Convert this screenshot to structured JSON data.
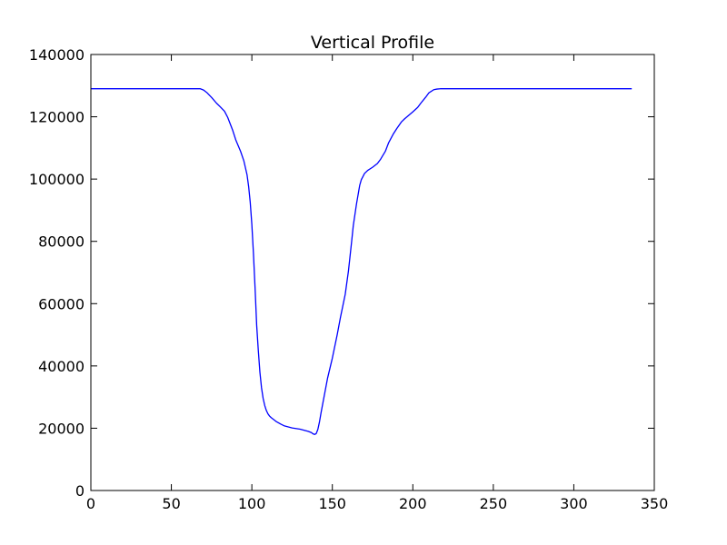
{
  "chart_data": {
    "type": "line",
    "title": "Vertical Profile",
    "xlabel": "",
    "ylabel": "",
    "xlim": [
      0,
      350
    ],
    "ylim": [
      0,
      140000
    ],
    "x_ticks": [
      0,
      50,
      100,
      150,
      200,
      250,
      300,
      350
    ],
    "y_ticks": [
      0,
      20000,
      40000,
      60000,
      80000,
      100000,
      120000,
      140000
    ],
    "grid": false,
    "legend": "none",
    "series": [
      {
        "name": "",
        "color": "#0000ff",
        "x": [
          0,
          10,
          20,
          30,
          40,
          50,
          60,
          65,
          68,
          70,
          72,
          75,
          78,
          80,
          83,
          85,
          88,
          90,
          93,
          95,
          97,
          98,
          99,
          100,
          101,
          102,
          103,
          104,
          105,
          106,
          107,
          108,
          109,
          110,
          111,
          112,
          113,
          115,
          118,
          120,
          125,
          130,
          135,
          137,
          138,
          139,
          140,
          141,
          142,
          143,
          145,
          147,
          150,
          153,
          155,
          158,
          160,
          162,
          163,
          165,
          167,
          168,
          169,
          170,
          172,
          175,
          178,
          180,
          183,
          185,
          188,
          190,
          193,
          195,
          198,
          200,
          203,
          205,
          208,
          210,
          213,
          215,
          217,
          218,
          220,
          225,
          230,
          250,
          280,
          300,
          320,
          336
        ],
        "y": [
          129000,
          129000,
          129000,
          129000,
          129000,
          129000,
          129000,
          129000,
          129000,
          128600,
          127800,
          126200,
          124400,
          123400,
          121800,
          119800,
          115800,
          112600,
          108900,
          105900,
          101400,
          97600,
          92500,
          85400,
          76000,
          65000,
          53000,
          45000,
          38000,
          33000,
          29600,
          27300,
          25700,
          24600,
          23900,
          23400,
          23000,
          22200,
          21300,
          20800,
          20100,
          19700,
          19000,
          18600,
          18200,
          18000,
          18300,
          19600,
          22000,
          25000,
          30500,
          36000,
          42500,
          50000,
          55500,
          63000,
          70500,
          80000,
          85000,
          92000,
          98000,
          99800,
          100800,
          101800,
          102800,
          103800,
          105000,
          106400,
          109000,
          111700,
          114600,
          116200,
          118400,
          119400,
          120700,
          121600,
          123000,
          124400,
          126300,
          127700,
          128700,
          128900,
          129000,
          129000,
          129000,
          129000,
          129000,
          129000,
          129000,
          129000,
          129000,
          129000
        ]
      }
    ]
  }
}
